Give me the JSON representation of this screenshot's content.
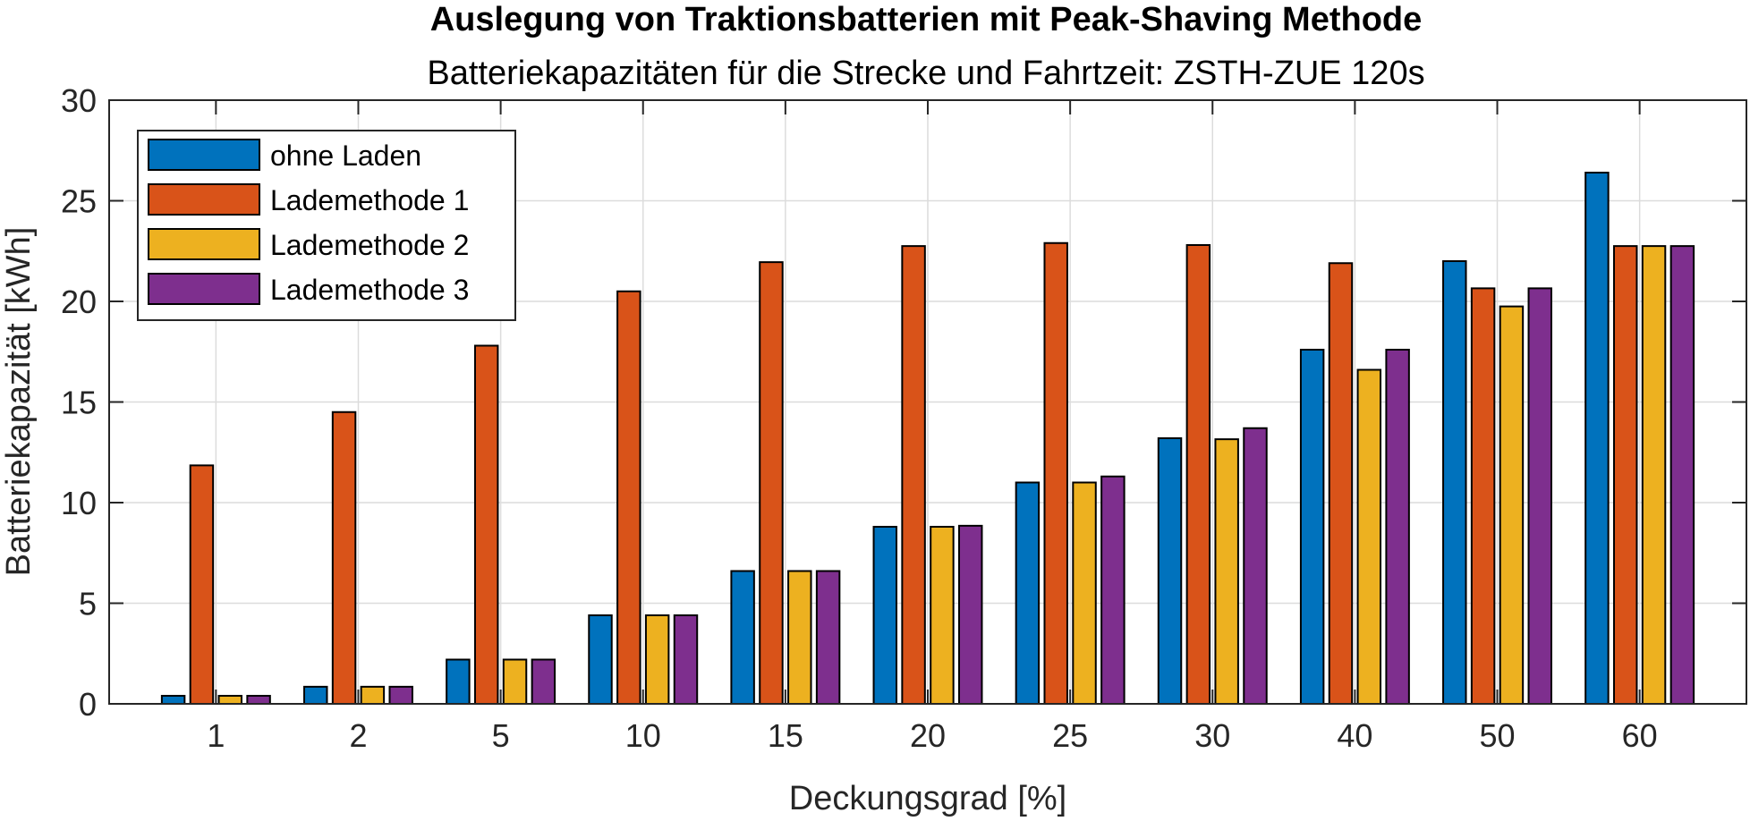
{
  "chart_data": {
    "type": "bar",
    "title": "Auslegung von Traktionsbatterien mit Peak-Shaving Methode",
    "subtitle": "Batteriekapazitäten für die Strecke und Fahrtzeit: ZSTH-ZUE 120s",
    "xlabel": "Deckungsgrad [%]",
    "ylabel": "Batteriekapazität [kWh]",
    "ylim": [
      0,
      30
    ],
    "yticks": [
      "0",
      "5",
      "10",
      "15",
      "20",
      "25",
      "30"
    ],
    "categories": [
      "1",
      "2",
      "5",
      "10",
      "15",
      "20",
      "25",
      "30",
      "40",
      "50",
      "60"
    ],
    "grid": true,
    "legend_position": "top-left",
    "series": [
      {
        "name": "ohne Laden",
        "color": "#0072BD",
        "values": [
          0.4,
          0.85,
          2.2,
          4.4,
          6.6,
          8.8,
          11.0,
          13.2,
          17.6,
          22.0,
          26.4
        ]
      },
      {
        "name": "Lademethode 1",
        "color": "#D95319",
        "values": [
          11.85,
          14.5,
          17.8,
          20.5,
          21.95,
          22.75,
          22.9,
          22.8,
          21.9,
          20.65,
          22.75
        ]
      },
      {
        "name": "Lademethode 2",
        "color": "#EDB120",
        "values": [
          0.4,
          0.85,
          2.2,
          4.4,
          6.6,
          8.8,
          11.0,
          13.15,
          16.6,
          19.75,
          22.75
        ]
      },
      {
        "name": "Lademethode 3",
        "color": "#7E2F8E",
        "values": [
          0.4,
          0.85,
          2.2,
          4.4,
          6.6,
          8.85,
          11.3,
          13.7,
          17.6,
          20.65,
          22.75
        ]
      }
    ]
  }
}
